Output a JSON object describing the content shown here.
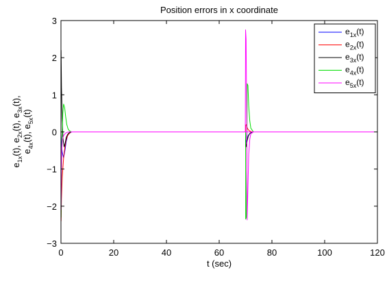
{
  "chart_data": {
    "type": "line",
    "title": "Position errors in x coordinate",
    "xlabel": "t (sec)",
    "ylabel_lines": [
      [
        [
          "e",
          ""
        ],
        [
          "1x",
          "sub"
        ],
        [
          "(t), ",
          ""
        ],
        [
          "e",
          ""
        ],
        [
          "2x",
          "sub"
        ],
        [
          "(t), ",
          ""
        ],
        [
          "e",
          ""
        ],
        [
          "3x",
          "sub"
        ],
        [
          "(t),",
          ""
        ]
      ],
      [
        [
          "e",
          ""
        ],
        [
          "4x",
          "sub"
        ],
        [
          "(t), ",
          ""
        ],
        [
          "e",
          ""
        ],
        [
          "5x",
          "sub"
        ],
        [
          "(t)",
          ""
        ]
      ]
    ],
    "xlim": [
      0,
      120
    ],
    "ylim": [
      -3,
      3
    ],
    "xticks": [
      0,
      20,
      40,
      60,
      80,
      100,
      120
    ],
    "yticks": [
      -3,
      -2,
      -1,
      0,
      1,
      2,
      3
    ],
    "grid": false,
    "legend_position": "top-right",
    "series": [
      {
        "label_main": "e",
        "label_sub": "1x",
        "label_end": "(t)",
        "color": "#0000ff",
        "x": [
          0,
          0.15,
          0.5,
          1,
          1.5,
          2,
          2.5,
          3,
          3.5,
          4,
          5,
          70,
          70.15,
          70.5,
          71,
          71.5,
          72,
          73,
          74,
          120
        ],
        "y": [
          -0.05,
          -0.3,
          -0.55,
          -0.7,
          -0.5,
          -0.25,
          -0.1,
          -0.05,
          -0.02,
          0,
          0,
          0,
          -0.3,
          -0.2,
          -0.1,
          -0.05,
          -0.02,
          0,
          0,
          0
        ]
      },
      {
        "label_main": "e",
        "label_sub": "2x",
        "label_end": "(t)",
        "color": "#ff0000",
        "x": [
          0,
          0.05,
          0.2,
          0.5,
          1,
          1.5,
          2,
          2.5,
          3,
          3.5,
          4,
          5,
          70,
          70.1,
          70.3,
          70.6,
          71,
          71.5,
          72,
          73,
          120
        ],
        "y": [
          0,
          -2.4,
          -1.8,
          -1.2,
          -0.7,
          -0.4,
          -0.2,
          -0.1,
          -0.05,
          -0.02,
          0,
          0,
          0,
          0.18,
          0.2,
          0.12,
          0.06,
          0.03,
          0.01,
          0,
          0
        ]
      },
      {
        "label_main": "e",
        "label_sub": "3x",
        "label_end": "(t)",
        "color": "#000000",
        "x": [
          0,
          0.05,
          0.2,
          0.5,
          0.8,
          1.2,
          1.6,
          2,
          2.5,
          3,
          4,
          5,
          70,
          70.1,
          70.3,
          70.6,
          71,
          71.5,
          72,
          73,
          120
        ],
        "y": [
          0,
          2.2,
          1.2,
          0.3,
          -0.2,
          -0.4,
          -0.3,
          -0.15,
          -0.07,
          -0.03,
          0,
          0,
          0,
          -0.3,
          -0.4,
          -0.25,
          -0.12,
          -0.05,
          -0.02,
          0,
          0
        ]
      },
      {
        "label_main": "e",
        "label_sub": "4x",
        "label_end": "(t)",
        "color": "#00dd00",
        "x": [
          0,
          0.05,
          0.3,
          0.7,
          1,
          1.4,
          1.8,
          2.2,
          2.7,
          3.2,
          4,
          5,
          70,
          70.05,
          70.3,
          70.5,
          70.6,
          70.9,
          71.2,
          71.6,
          72,
          73,
          120
        ],
        "y": [
          0,
          -2.3,
          -0.5,
          0.5,
          0.75,
          0.65,
          0.4,
          0.2,
          0.08,
          0.03,
          0,
          0,
          0,
          -2.35,
          -2.3,
          -1.0,
          1.3,
          1.25,
          0.7,
          0.3,
          0.1,
          0,
          0
        ]
      },
      {
        "label_main": "e",
        "label_sub": "5x",
        "label_end": "(t)",
        "color": "#ff00ff",
        "x": [
          0,
          0.05,
          0.15,
          0.3,
          0.6,
          1,
          1.5,
          2,
          2.5,
          3,
          4,
          120
        ],
        "y": [
          0,
          -2.1,
          -1.2,
          -0.5,
          -0.2,
          -0.1,
          -0.05,
          -0.02,
          -0.01,
          0,
          0,
          0
        ],
        "x2": [
          69.9,
          70,
          70.2,
          70.45,
          70.6,
          70.9,
          71.2,
          71.6,
          72,
          73,
          120
        ],
        "y2": [
          0,
          2.75,
          2.5,
          0.2,
          -2.37,
          -1.5,
          -0.6,
          -0.2,
          -0.05,
          0,
          0
        ]
      }
    ]
  }
}
